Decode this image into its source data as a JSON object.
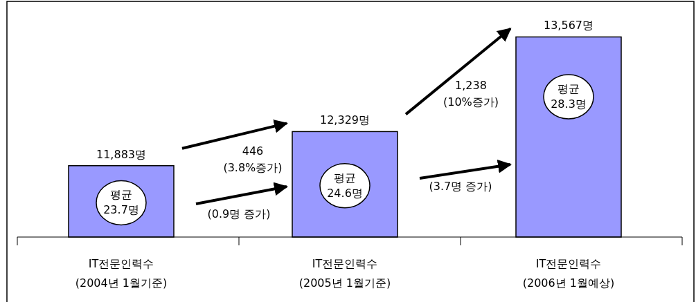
{
  "chart_data": {
    "type": "bar",
    "categories": [
      "IT전문인력수\n(2004년 1월기준)",
      "IT전문인력수\n(2005년 1월기준)",
      "IT전문인력수\n(2006년 1월예상)"
    ],
    "values": [
      11883,
      12329,
      13567
    ],
    "value_labels": [
      "11,883명",
      "12,329명",
      "13,567명"
    ],
    "color": "#9999ff",
    "ylim": [
      10950,
      14050
    ],
    "tick_labels": "x",
    "annotations": [
      "446\n(3.8%증가)",
      "(0.9명 증가)",
      "1,238\n(10%증가)",
      "(3.7명 증가)",
      "평균\n23.7명",
      "평균\n24.6명",
      "평균\n28.3명"
    ]
  }
}
